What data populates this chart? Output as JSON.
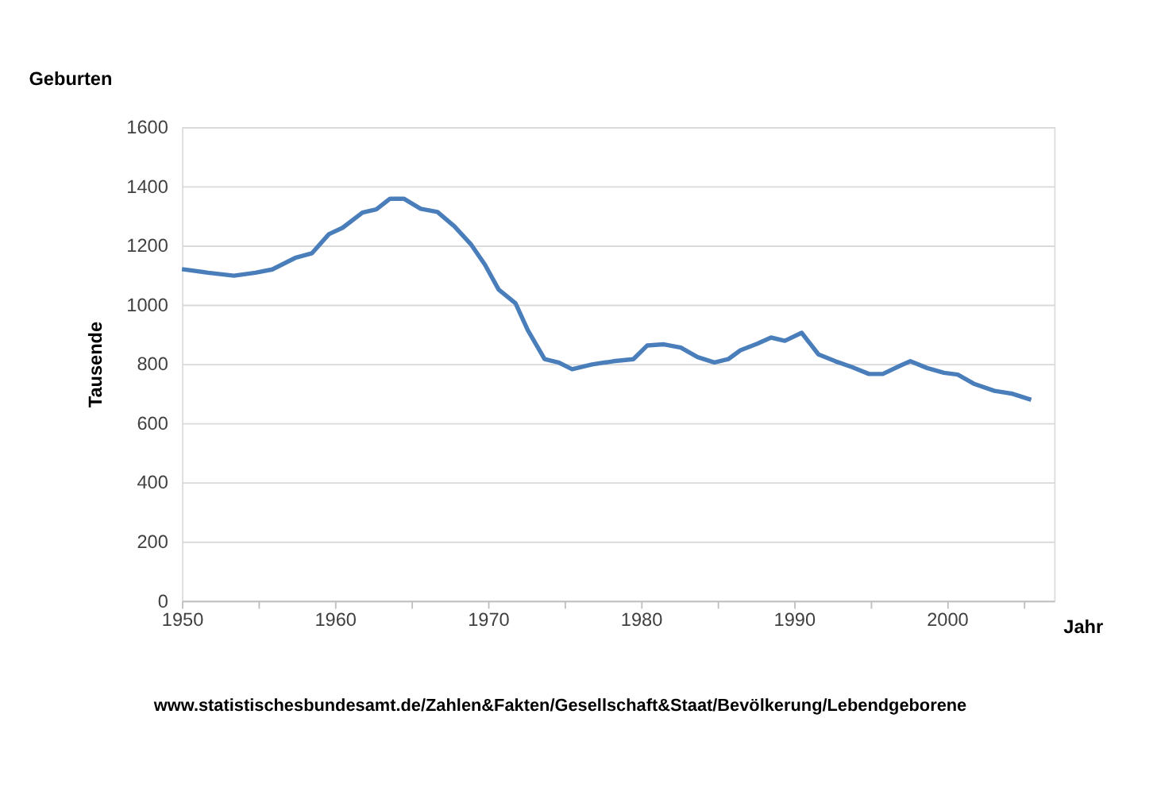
{
  "chart_data": {
    "type": "line",
    "title": "Geburten",
    "xlabel": "Jahr",
    "ylabel": "Tausende",
    "x": [
      1950,
      1951.7,
      1953.4,
      1954.8,
      1955.9,
      1957.4,
      1958.5,
      1959.6,
      1960.5,
      1961.8,
      1962.7,
      1963.6,
      1964.5,
      1965.6,
      1966.7,
      1967.8,
      1968.9,
      1969.8,
      1970.7,
      1971.8,
      1972.6,
      1973.7,
      1974.6,
      1975.5,
      1976.8,
      1978.2,
      1979.5,
      1980.4,
      1981.5,
      1982.6,
      1983.7,
      1984.8,
      1985.7,
      1986.5,
      1987.6,
      1988.5,
      1989.4,
      1990.5,
      1991.6,
      1992.7,
      1993.8,
      1994.9,
      1995.8,
      1996.9,
      1997.6,
      1998.7,
      1999.8,
      2000.7,
      2001.8,
      2003.1,
      2004.2,
      2005.5
    ],
    "series": [
      {
        "color": "#4a7ebb",
        "values": [
          1120,
          1108,
          1098,
          1108,
          1119,
          1158,
          1174,
          1238,
          1260,
          1311,
          1322,
          1358,
          1358,
          1324,
          1313,
          1265,
          1203,
          1135,
          1051,
          1005,
          914,
          816,
          805,
          782,
          798,
          809,
          816,
          862,
          866,
          855,
          823,
          805,
          816,
          846,
          868,
          889,
          878,
          905,
          832,
          809,
          789,
          766,
          766,
          793,
          809,
          786,
          770,
          764,
          732,
          709,
          700,
          679
        ]
      }
    ],
    "xlim": [
      1950,
      2007
    ],
    "xticks": [
      1950,
      {
        "value": 1955,
        "label": null
      },
      1960,
      {
        "value": 1965,
        "label": null
      },
      1970,
      {
        "value": 1975,
        "label": null
      },
      1980,
      {
        "value": 1985,
        "label": null
      },
      1990,
      {
        "value": 1995,
        "label": null
      },
      2000,
      {
        "value": 2005,
        "label": null
      }
    ],
    "ylim": [
      0,
      1600
    ],
    "yticks": [
      0,
      200,
      400,
      600,
      800,
      1000,
      1200,
      1400,
      1600
    ],
    "grid": "y",
    "marker": "none",
    "line_style": "solid",
    "annotations": [
      "www.statistischesbundesamt.de/Zahlen&Fakten/Gesellschaft&Staat/Bevölkerung/Lebendgeborene"
    ]
  }
}
